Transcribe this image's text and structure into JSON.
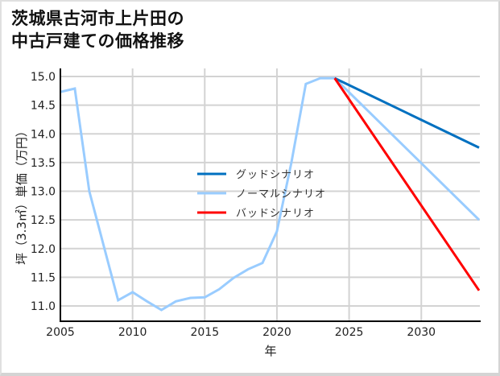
{
  "title_line1": "茨城県古河市上片田の",
  "title_line2": "中古戸建ての価格推移",
  "chart_data": {
    "type": "line",
    "title": "茨城県古河市上片田の中古戸建ての価格推移",
    "xlabel": "年",
    "ylabel": "坪（3.3㎡）単価（万円）",
    "xlim": [
      2005,
      2034
    ],
    "ylim": [
      10.72,
      15.08
    ],
    "grid": true,
    "legend_position": "center",
    "x_ticks": [
      "2005",
      "2010",
      "2015",
      "2020",
      "2025",
      "2030"
    ],
    "y_ticks": [
      "11.0",
      "11.5",
      "12.0",
      "12.5",
      "13.0",
      "13.5",
      "14.0",
      "14.5",
      "15.0"
    ],
    "series": [
      {
        "name": "グッドシナリオ",
        "color": "#0070c0",
        "x": [
          2024,
          2034
        ],
        "values": [
          14.97,
          13.76
        ]
      },
      {
        "name": "ノーマルシナリオ",
        "color": "#99ccff",
        "x": [
          2005,
          2006,
          2007,
          2008,
          2009,
          2010,
          2011,
          2012,
          2013,
          2014,
          2015,
          2016,
          2017,
          2018,
          2019,
          2020,
          2021,
          2022,
          2023,
          2024,
          2034
        ],
        "values": [
          14.73,
          14.79,
          13.0,
          12.05,
          11.1,
          11.24,
          11.08,
          10.93,
          11.08,
          11.14,
          11.15,
          11.29,
          11.49,
          11.64,
          11.75,
          12.3,
          13.5,
          14.87,
          14.97,
          14.97,
          12.5
        ]
      },
      {
        "name": "バッドシナリオ",
        "color": "#ff0000",
        "x": [
          2024,
          2034
        ],
        "values": [
          14.97,
          11.27
        ]
      }
    ]
  },
  "legend": [
    {
      "label": "グッドシナリオ",
      "color": "#0070c0"
    },
    {
      "label": "ノーマルシナリオ",
      "color": "#99ccff"
    },
    {
      "label": "バッドシナリオ",
      "color": "#ff0000"
    }
  ]
}
